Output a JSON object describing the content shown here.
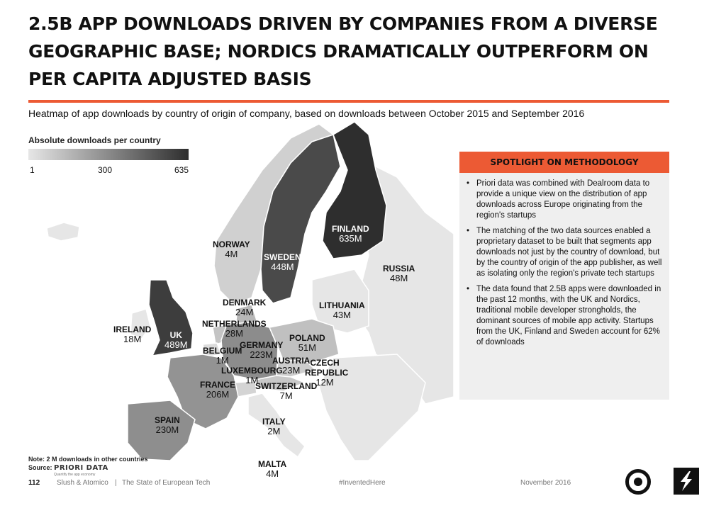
{
  "title": "2.5B APP DOWNLOADS DRIVEN BY COMPANIES FROM A DIVERSE GEOGRAPHIC BASE; NORDICS DRAMATICALLY OUTPERFORM ON PER CAPITA ADJUSTED BASIS",
  "subtitle": "Heatmap of app downloads by country of origin of company, based on downloads between October 2015 and September 2016",
  "legend": {
    "title": "Absolute downloads per country",
    "ticks": [
      "1",
      "300",
      "635"
    ],
    "min": 1,
    "mid": 300,
    "max": 635,
    "color_low": "#e6e6e6",
    "color_high": "#2e2e2e"
  },
  "countries": [
    {
      "name": "NORWAY",
      "value": "4M"
    },
    {
      "name": "SWEDEN",
      "value": "448M"
    },
    {
      "name": "FINLAND",
      "value": "635M"
    },
    {
      "name": "RUSSIA",
      "value": "48M"
    },
    {
      "name": "DENMARK",
      "value": "24M"
    },
    {
      "name": "LITHUANIA",
      "value": "43M"
    },
    {
      "name": "NETHERLANDS",
      "value": "28M"
    },
    {
      "name": "IRELAND",
      "value": "18M"
    },
    {
      "name": "UK",
      "value": "489M"
    },
    {
      "name": "BELGIUM",
      "value": "1M"
    },
    {
      "name": "GERMANY",
      "value": "223M"
    },
    {
      "name": "POLAND",
      "value": "51M"
    },
    {
      "name": "AUSTRIA",
      "value": "23M"
    },
    {
      "name": "CZECH REPUBLIC",
      "value": "12M"
    },
    {
      "name": "LUXEMBOURG",
      "value": "1M"
    },
    {
      "name": "FRANCE",
      "value": "206M"
    },
    {
      "name": "SWITZERLAND",
      "value": "7M"
    },
    {
      "name": "SPAIN",
      "value": "230M"
    },
    {
      "name": "ITALY",
      "value": "2M"
    },
    {
      "name": "MALTA",
      "value": "4M"
    }
  ],
  "spotlight": {
    "header": "SPOTLIGHT ON METHODOLOGY",
    "bullets": [
      "Priori data was combined with Dealroom data to provide a unique view on the distribution of app downloads across Europe originating from the region's startups",
      "The matching of the two data sources enabled a proprietary dataset to be built that segments app downloads not just by the country of download, but by the country of origin of the app publisher, as well as isolating only the region's private tech startups",
      "The data found that 2.5B apps were downloaded in the past 12 months, with the UK and Nordics, traditional mobile developer strongholds, the dominant sources of mobile app activity. Startups from the UK, Finland and Sweden account for 62% of downloads"
    ]
  },
  "note": "Note: 2 M downloads in other countries",
  "source": {
    "label": "Source:",
    "name": "PRIORI DATA",
    "tagline": "Quantify the app economy"
  },
  "footer": {
    "page": "112",
    "publisher": "Slush & Atomico",
    "separator": "|",
    "report": "The State of European Tech",
    "hashtag": "#InventedHere",
    "date": "November 2016"
  },
  "colors": {
    "accent": "#ec5a34",
    "background_land": "#e6e6e6",
    "finland": "#2e2e2e",
    "uk": "#3d3d3d",
    "sweden": "#4a4a4a",
    "norway": "#d0d0d0",
    "germany": "#8c8c8c",
    "france": "#939393",
    "spain": "#8e8e8e"
  }
}
